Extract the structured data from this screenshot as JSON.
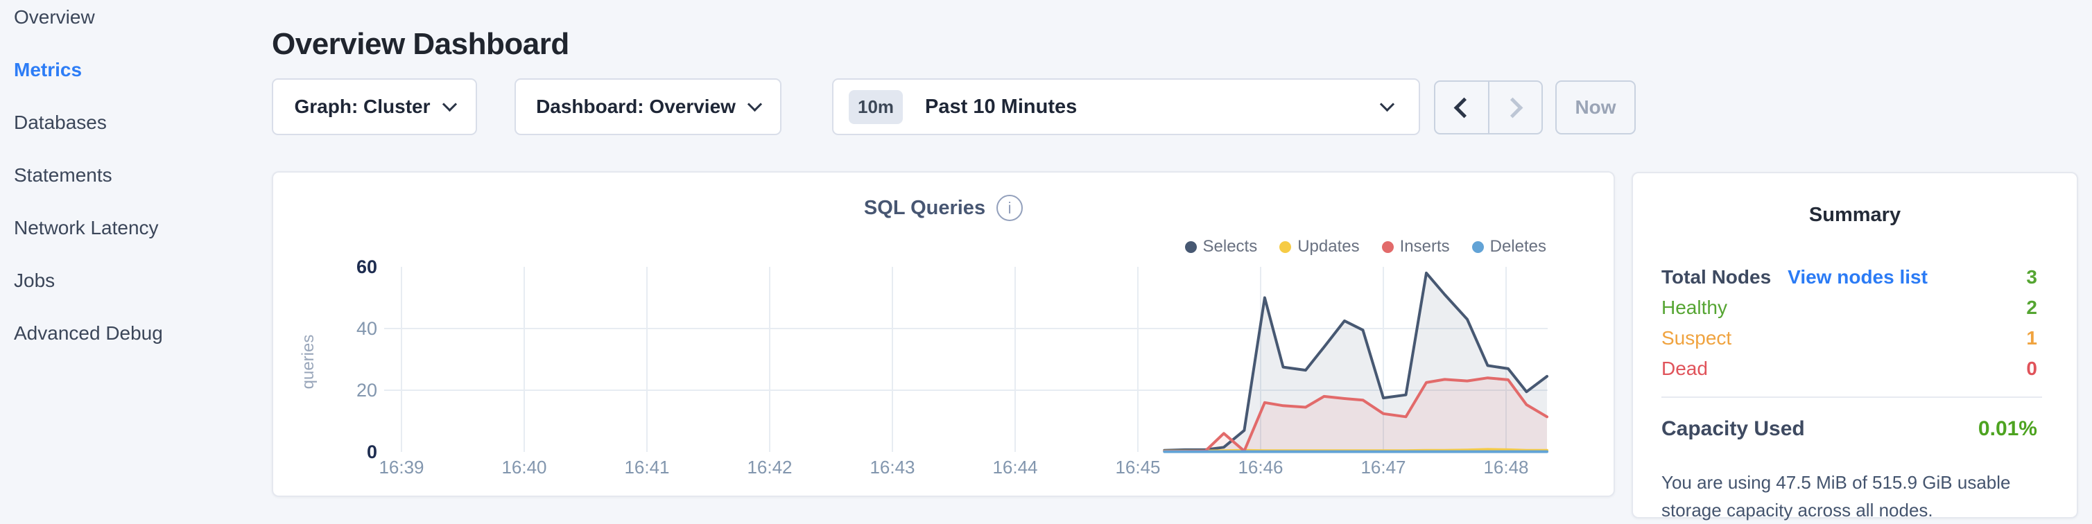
{
  "colors": {
    "accent_blue": "#2d7df6",
    "green": "#55a532",
    "orange": "#f0a33f",
    "red": "#e0535a",
    "page_background": "#f4f6fa"
  },
  "icons": {
    "info": "i"
  },
  "sidebar": {
    "items": [
      {
        "label": "Overview",
        "active": false
      },
      {
        "label": "Metrics",
        "active": true
      },
      {
        "label": "Databases",
        "active": false
      },
      {
        "label": "Statements",
        "active": false
      },
      {
        "label": "Network Latency",
        "active": false
      },
      {
        "label": "Jobs",
        "active": false
      },
      {
        "label": "Advanced Debug",
        "active": false
      }
    ]
  },
  "header": {
    "title": "Overview Dashboard"
  },
  "controls": {
    "graph_dropdown": {
      "label": "Graph: Cluster"
    },
    "dashboard_dropdown": {
      "label": "Dashboard: Overview"
    },
    "time_selector": {
      "badge": "10m",
      "label": "Past 10 Minutes"
    },
    "now_button": "Now"
  },
  "chart_data": {
    "type": "area",
    "title": "SQL Queries",
    "ylabel": "queries",
    "ylim": [
      0,
      60
    ],
    "grid": true,
    "legend_position": "top-right",
    "x_start_label": "16:39",
    "x_tick_interval_seconds": 60,
    "x_ticks": [
      "16:39",
      "16:40",
      "16:41",
      "16:42",
      "16:43",
      "16:44",
      "16:45",
      "16:46",
      "16:47",
      "16:48"
    ],
    "y_ticks": [
      {
        "value": 0,
        "emphasis": true
      },
      {
        "value": 20,
        "emphasis": false
      },
      {
        "value": 40,
        "emphasis": false
      },
      {
        "value": 60,
        "emphasis": true
      }
    ],
    "point_x_unit": "seconds after 16:39:00",
    "series": [
      {
        "name": "Selects",
        "color": "#475872",
        "points": [
          [
            373,
            0.5
          ],
          [
            383,
            0.7
          ],
          [
            393,
            0.7
          ],
          [
            402,
            1.5
          ],
          [
            412,
            7
          ],
          [
            422,
            50
          ],
          [
            431,
            27.5
          ],
          [
            442,
            26.5
          ],
          [
            451,
            34
          ],
          [
            461,
            42.5
          ],
          [
            470,
            39.5
          ],
          [
            480,
            17.5
          ],
          [
            491,
            18.5
          ],
          [
            501,
            58
          ],
          [
            510,
            51
          ],
          [
            521,
            43
          ],
          [
            531,
            28
          ],
          [
            541,
            27
          ],
          [
            550,
            19.5
          ],
          [
            560,
            24.5
          ]
        ]
      },
      {
        "name": "Updates",
        "color": "#f6cb45",
        "points": [
          [
            373,
            0.3
          ],
          [
            383,
            0.3
          ],
          [
            393,
            0.3
          ],
          [
            402,
            0.4
          ],
          [
            412,
            0.5
          ],
          [
            422,
            0.4
          ],
          [
            431,
            0.4
          ],
          [
            442,
            0.4
          ],
          [
            451,
            0.4
          ],
          [
            461,
            0.4
          ],
          [
            470,
            0.4
          ],
          [
            480,
            0.4
          ],
          [
            491,
            0.4
          ],
          [
            501,
            0.5
          ],
          [
            510,
            0.5
          ],
          [
            521,
            0.6
          ],
          [
            531,
            0.8
          ],
          [
            541,
            0.7
          ],
          [
            550,
            0.5
          ],
          [
            560,
            0.5
          ]
        ]
      },
      {
        "name": "Inserts",
        "color": "#e26a6a",
        "points": [
          [
            373,
            0.2
          ],
          [
            383,
            0.2
          ],
          [
            393,
            0.3
          ],
          [
            402,
            6
          ],
          [
            412,
            0.3
          ],
          [
            422,
            16
          ],
          [
            431,
            15
          ],
          [
            442,
            14.5
          ],
          [
            451,
            18
          ],
          [
            461,
            17.3
          ],
          [
            470,
            16.8
          ],
          [
            480,
            12.4
          ],
          [
            491,
            11.4
          ],
          [
            501,
            22.5
          ],
          [
            510,
            23.5
          ],
          [
            521,
            23
          ],
          [
            531,
            24
          ],
          [
            541,
            23.4
          ],
          [
            550,
            15.3
          ],
          [
            560,
            11.4
          ]
        ]
      },
      {
        "name": "Deletes",
        "color": "#62a3d6",
        "points": [
          [
            373,
            0.1
          ],
          [
            383,
            0.1
          ],
          [
            393,
            0.1
          ],
          [
            402,
            0.1
          ],
          [
            412,
            0.1
          ],
          [
            422,
            0.1
          ],
          [
            431,
            0.1
          ],
          [
            442,
            0.1
          ],
          [
            451,
            0.1
          ],
          [
            461,
            0.1
          ],
          [
            470,
            0.1
          ],
          [
            480,
            0.1
          ],
          [
            491,
            0.1
          ],
          [
            501,
            0.1
          ],
          [
            510,
            0.1
          ],
          [
            521,
            0.1
          ],
          [
            531,
            0.1
          ],
          [
            541,
            0.1
          ],
          [
            550,
            0.1
          ],
          [
            560,
            0.1
          ]
        ]
      }
    ]
  },
  "summary": {
    "title": "Summary",
    "node_rows": [
      {
        "label": "Total Nodes",
        "label_color": "#3e4a61",
        "label_bold": true,
        "link": "View nodes list",
        "value": "3",
        "value_color": "#55a532"
      },
      {
        "label": "Healthy",
        "label_color": "#55a532",
        "label_bold": false,
        "link": "",
        "value": "2",
        "value_color": "#55a532"
      },
      {
        "label": "Suspect",
        "label_color": "#f0a33f",
        "label_bold": false,
        "link": "",
        "value": "1",
        "value_color": "#f0a33f"
      },
      {
        "label": "Dead",
        "label_color": "#e0535a",
        "label_bold": false,
        "link": "",
        "value": "0",
        "value_color": "#e0535a"
      }
    ],
    "capacity": {
      "label": "Capacity Used",
      "value": "0.01%",
      "value_color": "#4da320",
      "description": "You are using 47.5 MiB of 515.9 GiB usable storage capacity across all nodes."
    }
  }
}
